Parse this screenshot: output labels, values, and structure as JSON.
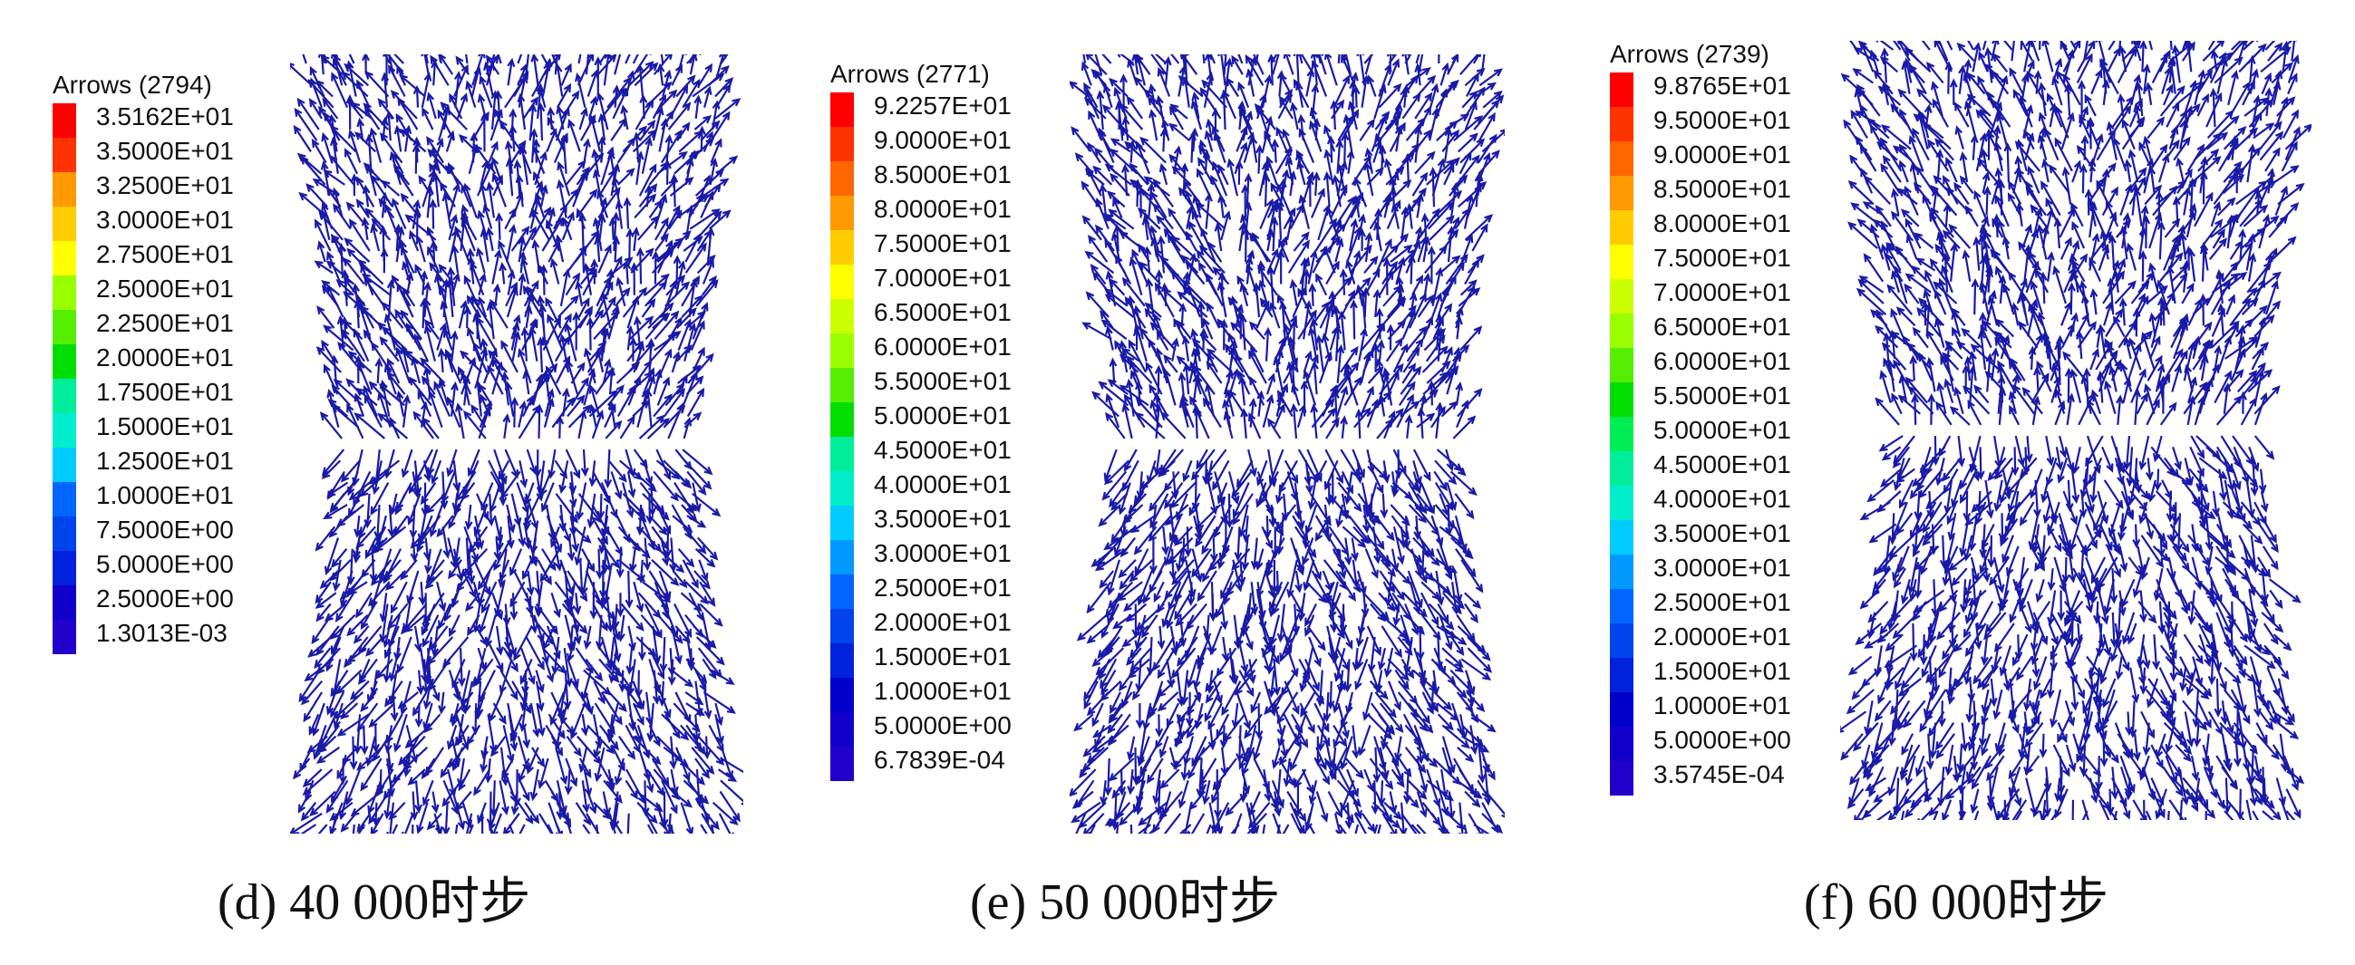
{
  "panels": [
    {
      "legend_title": "Arrows (2794)",
      "ticks": [
        "3.5162E+01",
        "3.5000E+01",
        "3.2500E+01",
        "3.0000E+01",
        "2.7500E+01",
        "2.5000E+01",
        "2.2500E+01",
        "2.0000E+01",
        "1.7500E+01",
        "1.5000E+01",
        "1.2500E+01",
        "1.0000E+01",
        "7.5000E+00",
        "5.0000E+00",
        "2.5000E+00",
        "1.3013E-03"
      ],
      "caption": "(d) 40 000时步"
    },
    {
      "legend_title": "Arrows (2771)",
      "ticks": [
        "9.2257E+01",
        "9.0000E+01",
        "8.5000E+01",
        "8.0000E+01",
        "7.5000E+01",
        "7.0000E+01",
        "6.5000E+01",
        "6.0000E+01",
        "5.5000E+01",
        "5.0000E+01",
        "4.5000E+01",
        "4.0000E+01",
        "3.5000E+01",
        "3.0000E+01",
        "2.5000E+01",
        "2.0000E+01",
        "1.5000E+01",
        "1.0000E+01",
        "5.0000E+00",
        "6.7839E-04"
      ],
      "caption": "(e) 50 000时步"
    },
    {
      "legend_title": "Arrows (2739)",
      "ticks": [
        "9.8765E+01",
        "9.5000E+01",
        "9.0000E+01",
        "8.5000E+01",
        "8.0000E+01",
        "7.5000E+01",
        "7.0000E+01",
        "6.5000E+01",
        "6.0000E+01",
        "5.5000E+01",
        "5.0000E+01",
        "4.5000E+01",
        "4.0000E+01",
        "3.5000E+01",
        "3.0000E+01",
        "2.5000E+01",
        "2.0000E+01",
        "1.5000E+01",
        "1.0000E+01",
        "5.0000E+00",
        "3.5745E-04"
      ],
      "caption": "(f) 60 000时步"
    }
  ],
  "colors": {
    "arrow": "#1a1aa8",
    "scale": [
      "#ff0000",
      "#ff3300",
      "#ff6600",
      "#ff9900",
      "#ffcc00",
      "#ffff00",
      "#ccff00",
      "#99ff00",
      "#55ee00",
      "#00dd00",
      "#00ee55",
      "#00ee99",
      "#00eecc",
      "#00ccff",
      "#0099ff",
      "#0066ff",
      "#0044ee",
      "#0022dd",
      "#0000cc",
      "#1100cc",
      "#2200cc"
    ]
  }
}
